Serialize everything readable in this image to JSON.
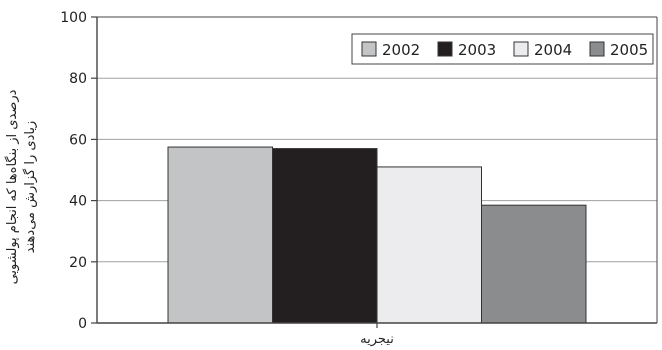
{
  "chart_data": {
    "type": "bar",
    "categories": [
      "نیجریه"
    ],
    "series": [
      {
        "name": "2002",
        "values": [
          57.5
        ],
        "color": "#c3c4c6"
      },
      {
        "name": "2003",
        "values": [
          57.0
        ],
        "color": "#231f20"
      },
      {
        "name": "2004",
        "values": [
          51.0
        ],
        "color": "#ececee"
      },
      {
        "name": "2005",
        "values": [
          38.5
        ],
        "color": "#8b8c8e"
      }
    ],
    "ylabel_lines": [
      "درصدی از بنگاه‌ها که انجام پولشویی",
      "زیادی را گزارش می‌دهند"
    ],
    "ylim": [
      0,
      100
    ],
    "yticks": [
      0,
      20,
      40,
      60,
      80,
      100
    ],
    "grid": true,
    "legend_position": "top-right",
    "colors": {
      "axis": "#444444",
      "grid": "#a0a0a0",
      "bar_stroke": "#333333"
    }
  }
}
